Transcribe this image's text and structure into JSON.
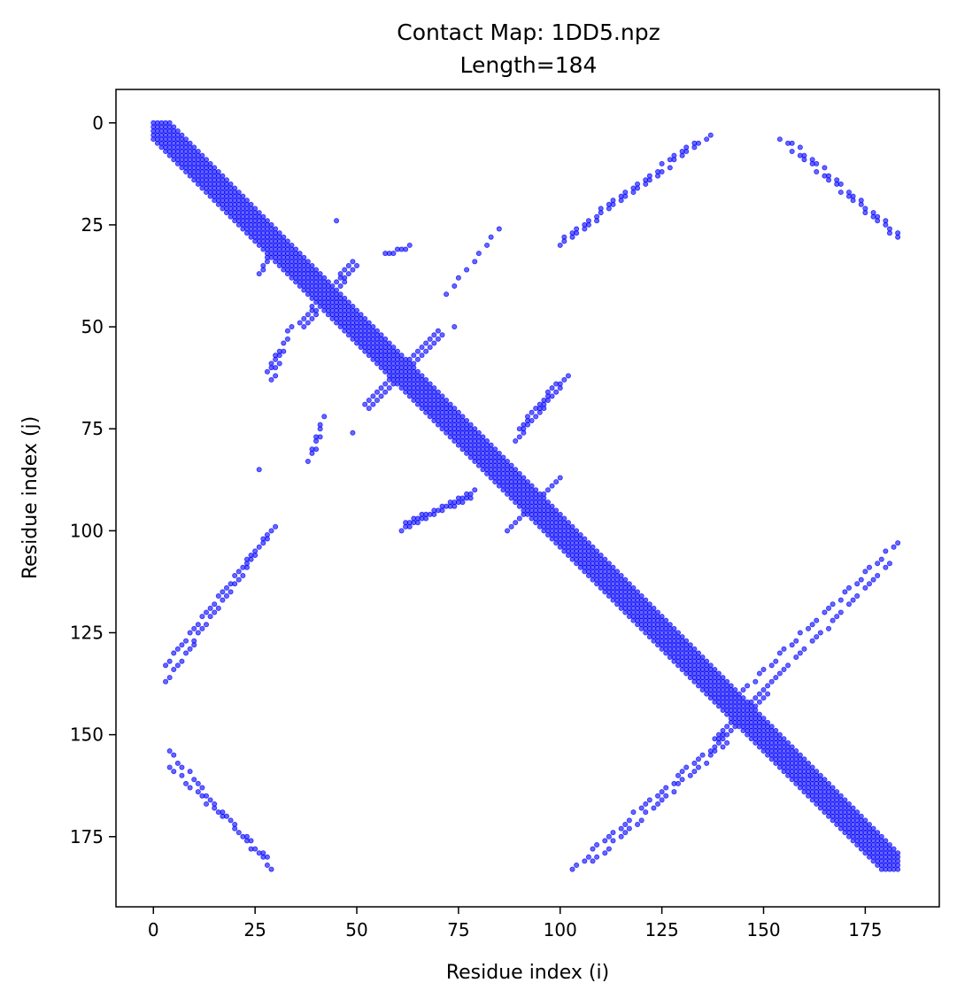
{
  "chart_data": {
    "type": "scatter",
    "title": "Contact Map: 1DD5.npz",
    "subtitle": "Length=184",
    "xlabel": "Residue index (i)",
    "ylabel": "Residue index (j)",
    "xlim": [
      -9.2,
      193.2
    ],
    "ylim": [
      192.2,
      -8.2
    ],
    "x_ticks": [
      0,
      25,
      50,
      75,
      100,
      125,
      150,
      175
    ],
    "y_ticks": [
      0,
      25,
      50,
      75,
      100,
      125,
      150,
      175
    ],
    "y_inverted": true,
    "grid": false,
    "marker_color": "#0000ff",
    "marker_opacity": 0.6,
    "length": 184,
    "diagonal_band": {
      "from": 0,
      "to": 183,
      "half_width": 4
    },
    "segments": [
      {
        "name": "helix-a-top",
        "from": [
          3,
          0
        ],
        "to": [
          4,
          4
        ],
        "step": 1
      },
      {
        "name": "strand-b-hairpin-1",
        "from": [
          57,
          32
        ],
        "to": [
          62,
          31
        ],
        "step": 1
      },
      {
        "name": "strand-b-hairpin-2",
        "from": [
          63,
          30
        ],
        "to": [
          63,
          30
        ],
        "step": 1
      },
      {
        "name": "cross-40-ne",
        "from": [
          36,
          49
        ],
        "to": [
          49,
          34
        ],
        "step": 1
      },
      {
        "name": "cross-40-ne-b",
        "from": [
          37,
          50
        ],
        "to": [
          50,
          35
        ],
        "step": 1
      },
      {
        "name": "cross-60-nw",
        "from": [
          50,
          47
        ],
        "to": [
          70,
          67
        ],
        "step": 1
      },
      {
        "name": "cross-60-ne",
        "from": [
          52,
          69
        ],
        "to": [
          70,
          51
        ],
        "step": 1
      },
      {
        "name": "cross-60-ne-b",
        "from": [
          53,
          70
        ],
        "to": [
          71,
          52
        ],
        "step": 1
      },
      {
        "name": "cross-60-ne-c",
        "from": [
          54,
          67
        ],
        "to": [
          66,
          55
        ],
        "step": 1
      },
      {
        "name": "cross-95-ne",
        "from": [
          87,
          100
        ],
        "to": [
          99,
          88
        ],
        "step": 1
      },
      {
        "name": "cross-95-ne-b",
        "from": [
          88,
          99
        ],
        "to": [
          100,
          87
        ],
        "step": 1
      },
      {
        "name": "cross-145-ne",
        "from": [
          138,
          151
        ],
        "to": [
          152,
          137
        ],
        "step": 1
      },
      {
        "name": "cross-145-ne-b",
        "from": [
          139,
          152
        ],
        "to": [
          151,
          140
        ],
        "step": 1
      },
      {
        "name": "upper-anti-a",
        "from": [
          100,
          30
        ],
        "to": [
          137,
          3
        ],
        "step": 1.5
      },
      {
        "name": "upper-anti-b",
        "from": [
          101,
          28
        ],
        "to": [
          133,
          5
        ],
        "step": 1.5
      },
      {
        "name": "upper-par-a",
        "from": [
          154,
          4
        ],
        "to": [
          184,
          29
        ],
        "step": 1.5
      },
      {
        "name": "upper-par-b",
        "from": [
          157,
          5
        ],
        "to": [
          183,
          27
        ],
        "step": 1.5
      },
      {
        "name": "mid-anti-a",
        "from": [
          61,
          100
        ],
        "to": [
          79,
          90
        ],
        "step": 1
      },
      {
        "name": "mid-anti-b",
        "from": [
          62,
          98
        ],
        "to": [
          78,
          92
        ],
        "step": 1
      },
      {
        "name": "mid-anti-c",
        "from": [
          64,
          97
        ],
        "to": [
          72,
          94
        ],
        "step": 1
      },
      {
        "name": "mid-anti-d",
        "from": [
          89,
          78
        ],
        "to": [
          102,
          62
        ],
        "step": 1
      },
      {
        "name": "mid-anti-e",
        "from": [
          90,
          75
        ],
        "to": [
          99,
          64
        ],
        "step": 1
      },
      {
        "name": "mid-anti-f",
        "from": [
          93,
          73
        ],
        "to": [
          97,
          68
        ],
        "step": 1
      },
      {
        "name": "mid-anti-g",
        "from": [
          72,
          42
        ],
        "to": [
          85,
          26
        ],
        "step": 2
      },
      {
        "name": "left-short-a",
        "from": [
          26,
          37
        ],
        "to": [
          32,
          28
        ],
        "step": 1
      },
      {
        "name": "left-short-b",
        "from": [
          27,
          35
        ],
        "to": [
          29,
          32
        ],
        "step": 1
      },
      {
        "name": "left-short-c",
        "from": [
          29,
          63
        ],
        "to": [
          34,
          50
        ],
        "step": 1.5
      },
      {
        "name": "left-short-d",
        "from": [
          28,
          61
        ],
        "to": [
          31,
          56
        ],
        "step": 1
      },
      {
        "name": "left-short-e",
        "from": [
          38,
          83
        ],
        "to": [
          42,
          72
        ],
        "step": 1.5
      },
      {
        "name": "left-short-f",
        "from": [
          39,
          81
        ],
        "to": [
          41,
          75
        ],
        "step": 1.5
      },
      {
        "name": "lower-left-par",
        "from": [
          3,
          137
        ],
        "to": [
          30,
          99
        ],
        "step": 1.3
      },
      {
        "name": "lower-left-par-b",
        "from": [
          3,
          133
        ],
        "to": [
          28,
          101
        ],
        "step": 1.3
      },
      {
        "name": "lower-left-anti",
        "from": [
          4,
          154
        ],
        "to": [
          29,
          183
        ],
        "step": 1.3
      },
      {
        "name": "lower-left-anti-b",
        "from": [
          4,
          158
        ],
        "to": [
          28,
          180
        ],
        "step": 1.3
      },
      {
        "name": "lower-right-anti",
        "from": [
          103,
          183
        ],
        "to": [
          143,
          148
        ],
        "step": 1.3
      },
      {
        "name": "lower-right-anti-b",
        "from": [
          108,
          181
        ],
        "to": [
          141,
          152
        ],
        "step": 1.3
      },
      {
        "name": "right-par",
        "from": [
          145,
          139
        ],
        "to": [
          183,
          103
        ],
        "step": 1.3
      },
      {
        "name": "right-par-b",
        "from": [
          150,
          139
        ],
        "to": [
          181,
          108
        ],
        "step": 1.3
      }
    ],
    "isolated_points": [
      [
        26,
        85
      ],
      [
        49,
        76
      ],
      [
        85,
        26
      ],
      [
        74,
        50
      ],
      [
        45,
        24
      ]
    ]
  }
}
